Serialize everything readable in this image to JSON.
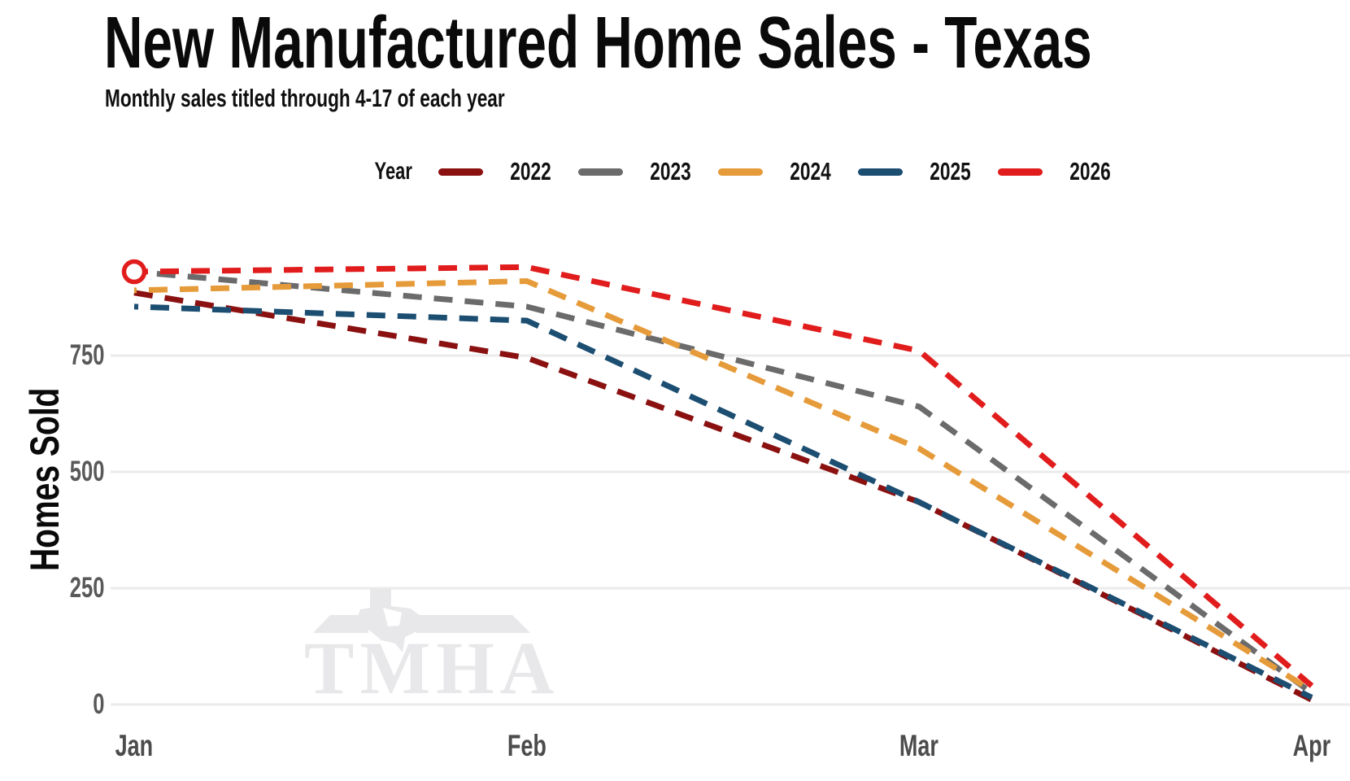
{
  "title": "New Manufactured Home Sales - Texas",
  "subtitle": "Monthly sales titled through 4-17 of each year",
  "legend": {
    "label": "Year"
  },
  "y_axis": {
    "label": "Homes Sold",
    "ticks": [
      0,
      250,
      500,
      750
    ]
  },
  "watermark": "TMHA",
  "chart_data": {
    "type": "line",
    "x": [
      "Jan",
      "Feb",
      "Mar",
      "Apr"
    ],
    "series": [
      {
        "name": "2022",
        "color": "#8B1111",
        "values": [
          885,
          745,
          435,
          10
        ]
      },
      {
        "name": "2023",
        "color": "#6B6B6B",
        "values": [
          930,
          855,
          640,
          25
        ]
      },
      {
        "name": "2024",
        "color": "#E69B3A",
        "values": [
          890,
          910,
          550,
          30
        ]
      },
      {
        "name": "2025",
        "color": "#1C4E72",
        "values": [
          855,
          825,
          435,
          15
        ]
      },
      {
        "name": "2026",
        "color": "#E11C1C",
        "values": [
          930,
          940,
          760,
          40
        ]
      }
    ],
    "marker": {
      "series": "2026",
      "x": "Jan",
      "value": 930,
      "style": "open-circle"
    },
    "line_style": "dashed",
    "grid": true,
    "ylim": [
      0,
      1000
    ],
    "legend_position": "top"
  }
}
